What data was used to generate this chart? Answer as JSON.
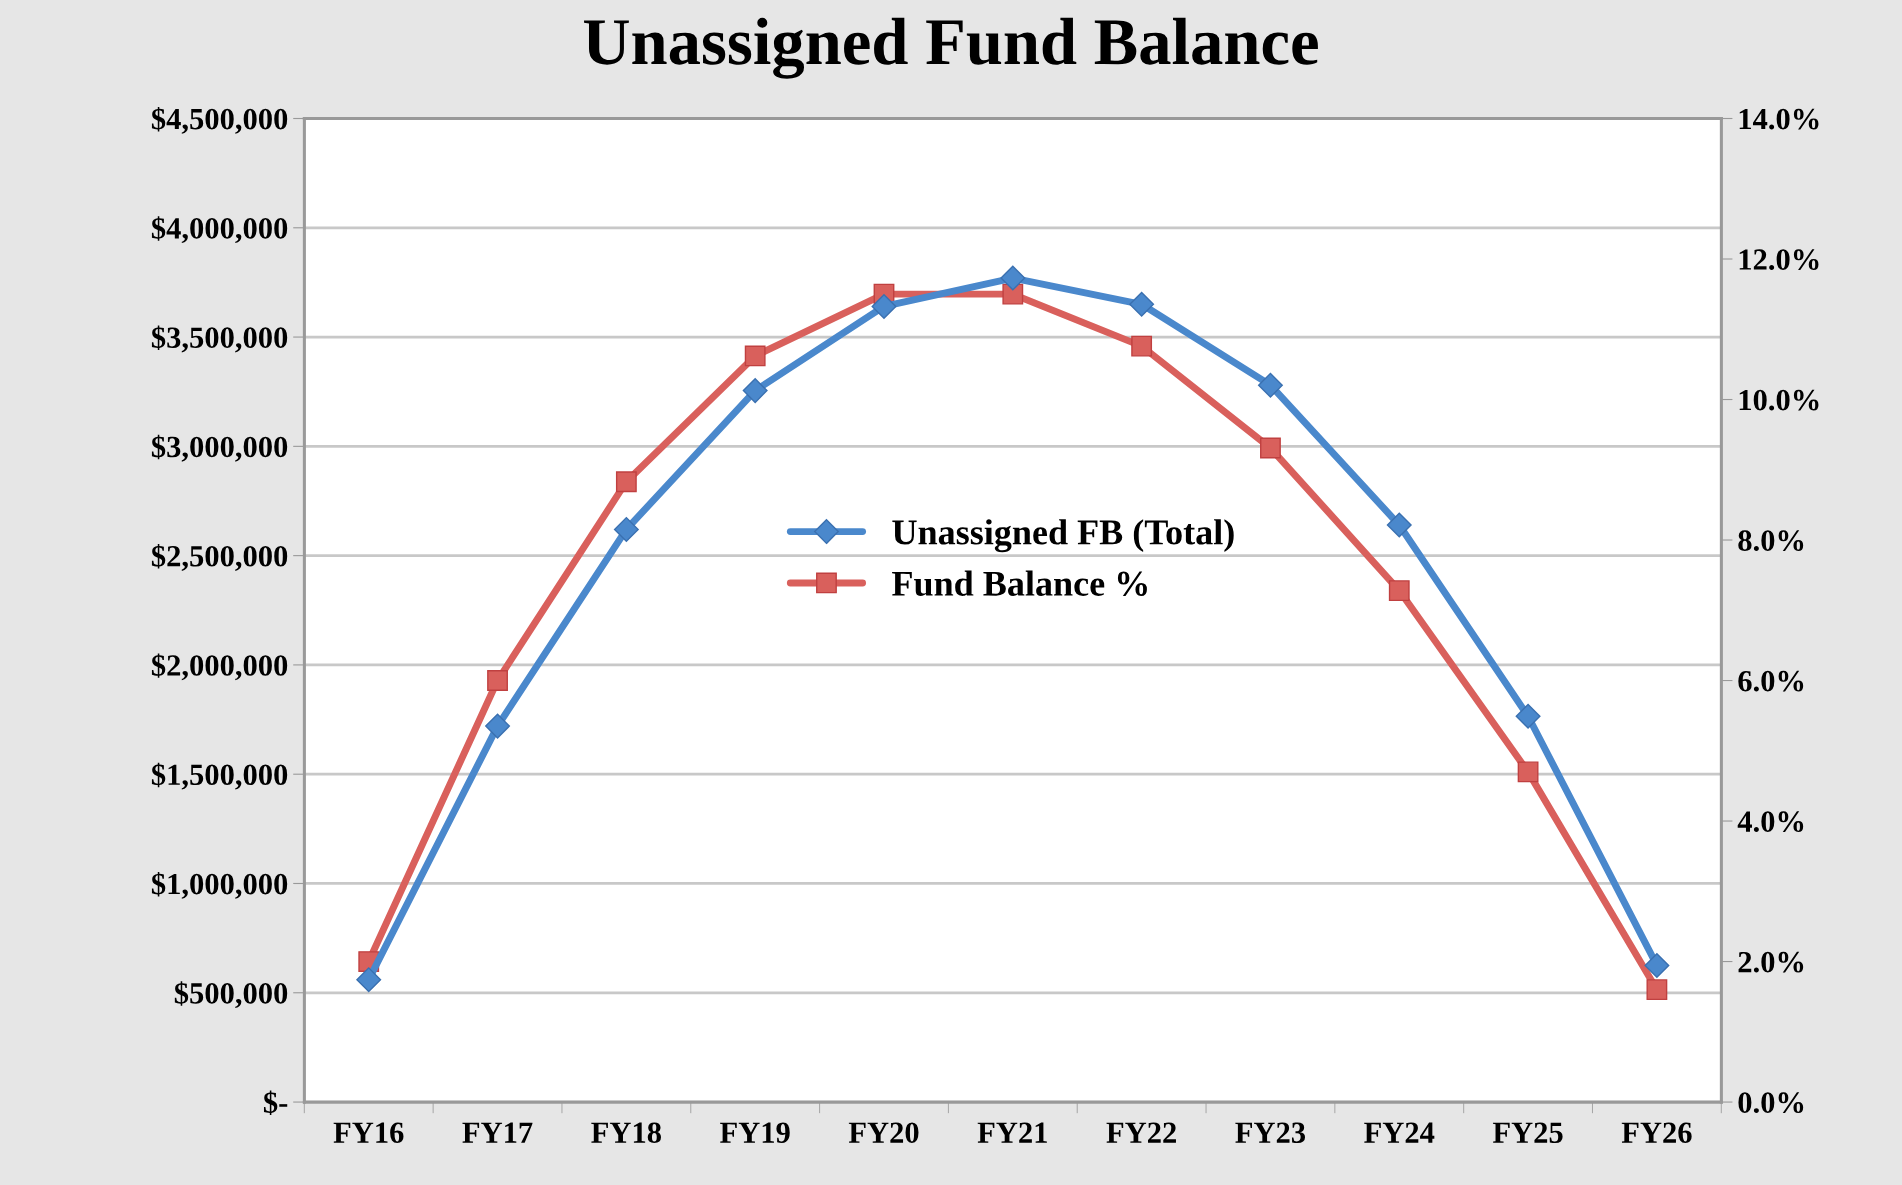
{
  "chart_data": {
    "type": "line",
    "title": "Unassigned Fund Balance",
    "categories": [
      "FY16",
      "FY17",
      "FY18",
      "FY19",
      "FY20",
      "FY21",
      "FY22",
      "FY23",
      "FY24",
      "FY25",
      "FY26"
    ],
    "series": [
      {
        "name": "Unassigned FB (Total)",
        "color": "#4a88cc",
        "marker": "diamond",
        "values": [
          560000,
          1720000,
          2620000,
          3255000,
          3640000,
          3770000,
          3650000,
          3280000,
          2640000,
          1765000,
          625000
        ]
      },
      {
        "name": "Fund Balance %",
        "color": "#d9605c",
        "marker": "square",
        "axis": "y2",
        "values": [
          2.0,
          6.0,
          8.83,
          10.62,
          11.5,
          11.5,
          10.76,
          9.31,
          7.28,
          4.7,
          1.6
        ]
      }
    ],
    "ylim": [
      0,
      4500000
    ],
    "yticks": [
      {
        "value": 0,
        "label": "$-"
      },
      {
        "value": 500000,
        "label": "$500,000"
      },
      {
        "value": 1000000,
        "label": "$1,000,000"
      },
      {
        "value": 1500000,
        "label": "$1,500,000"
      },
      {
        "value": 2000000,
        "label": "$2,000,000"
      },
      {
        "value": 2500000,
        "label": "$2,500,000"
      },
      {
        "value": 3000000,
        "label": "$3,000,000"
      },
      {
        "value": 3500000,
        "label": "$3,500,000"
      },
      {
        "value": 4000000,
        "label": "$4,000,000"
      },
      {
        "value": 4500000,
        "label": "$4,500,000"
      }
    ],
    "y2lim": [
      0,
      14
    ],
    "y2ticks": [
      {
        "value": 0,
        "label": "0.0%"
      },
      {
        "value": 2,
        "label": "2.0%"
      },
      {
        "value": 4,
        "label": "4.0%"
      },
      {
        "value": 6,
        "label": "6.0%"
      },
      {
        "value": 8,
        "label": "8.0%"
      },
      {
        "value": 10,
        "label": "10.0%"
      },
      {
        "value": 12,
        "label": "12.0%"
      },
      {
        "value": 14,
        "label": "14.0%"
      }
    ],
    "grid": "y",
    "legend": "center",
    "line_style": "solid"
  }
}
